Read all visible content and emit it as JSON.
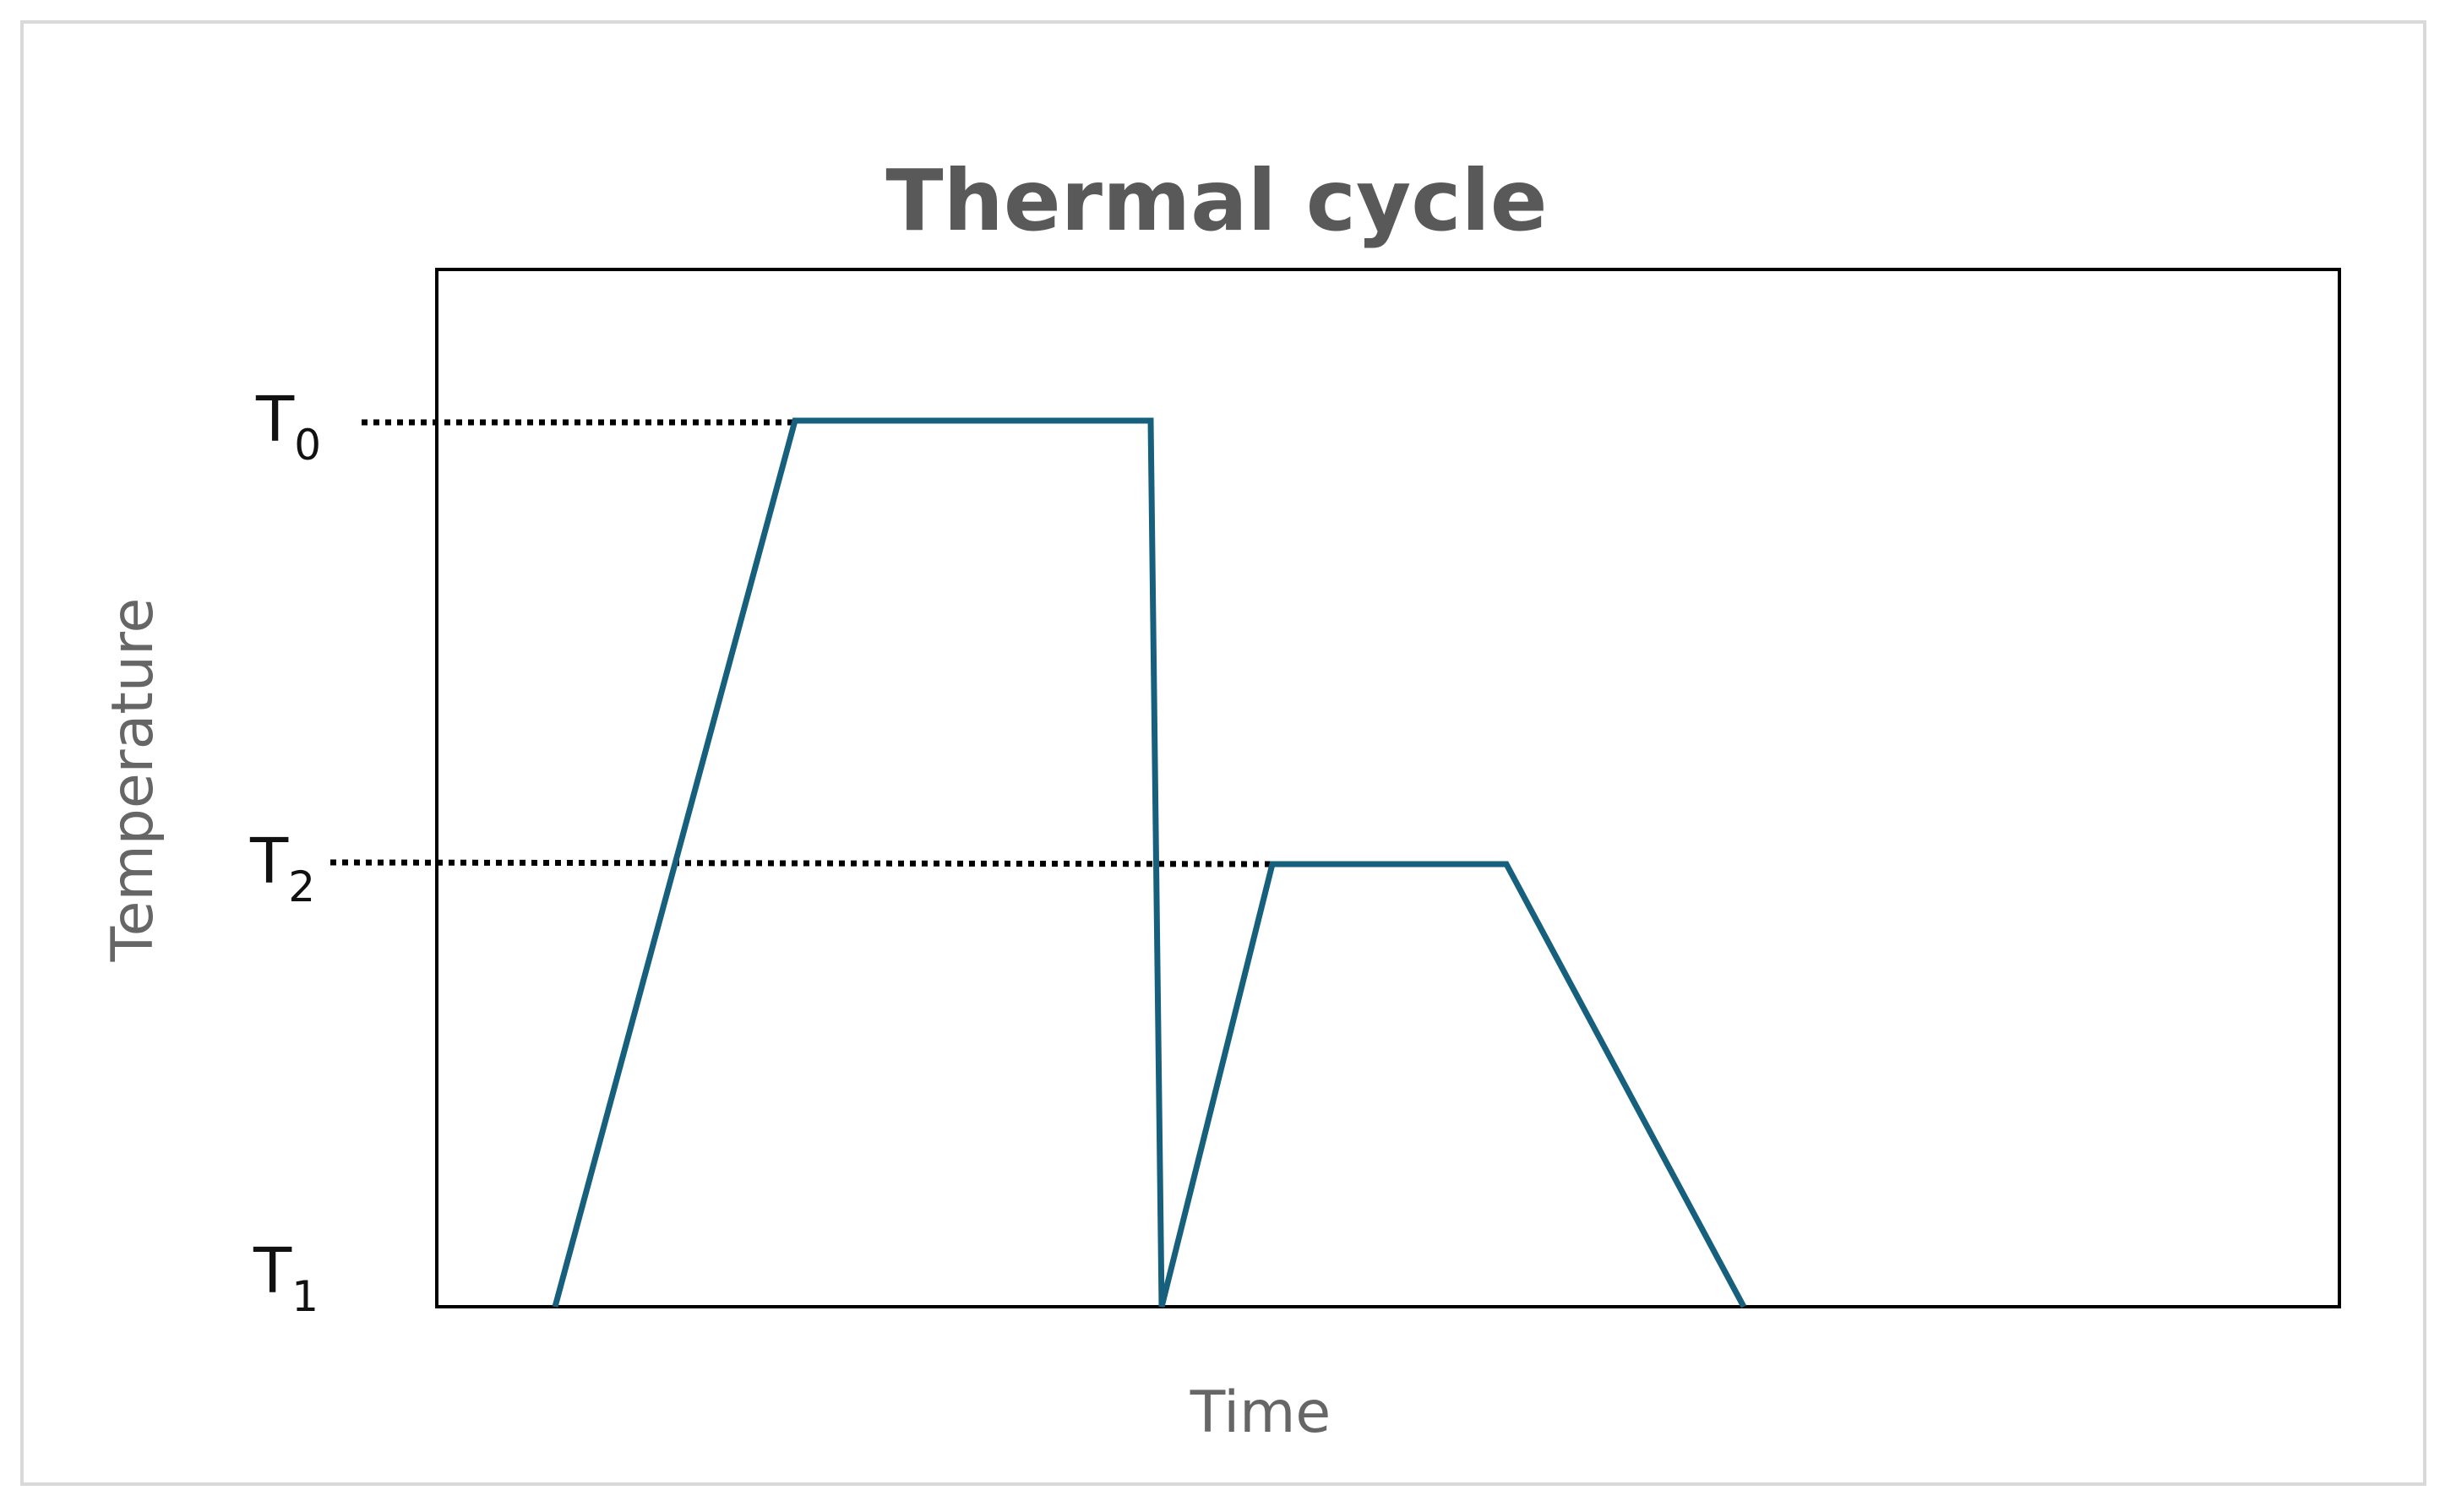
{
  "title": "Thermal cycle",
  "y_axis_label": "Temperature",
  "x_axis_label": "Time",
  "levels": [
    {
      "base": "T",
      "sub": "0"
    },
    {
      "base": "T",
      "sub": "2"
    },
    {
      "base": "T",
      "sub": "1"
    }
  ]
}
